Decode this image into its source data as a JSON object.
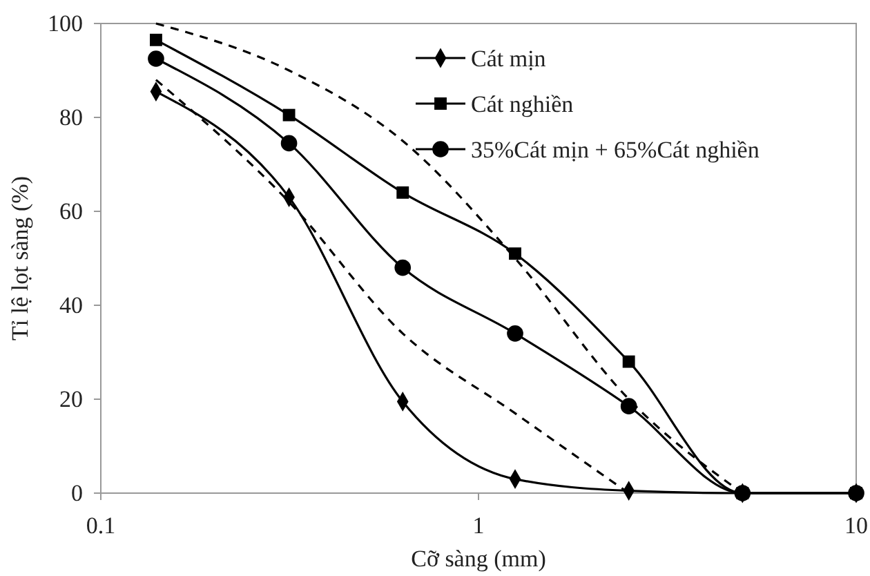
{
  "chart_data": {
    "type": "line",
    "xlabel": "Cỡ sàng (mm)",
    "ylabel": "Tỉ lệ lọt sàng (%)",
    "log": "x",
    "xlim": [
      0.1,
      10
    ],
    "xticks": [
      0.1,
      1,
      10
    ],
    "ylim": [
      0,
      100
    ],
    "yticks": [
      0,
      20,
      40,
      60,
      80,
      100
    ],
    "grid": false,
    "legend": "top right",
    "series": [
      {
        "name": "Cát mịn",
        "color": "#000000",
        "marker": "diamond",
        "line_style": "solid",
        "x": [
          0.14,
          0.315,
          0.63,
          1.25,
          2.5,
          5,
          10
        ],
        "values": [
          85.5,
          63,
          19.5,
          3,
          0.5,
          0,
          0
        ]
      },
      {
        "name": "Cát nghiền",
        "color": "#000000",
        "marker": "square",
        "line_style": "solid",
        "x": [
          0.14,
          0.315,
          0.63,
          1.25,
          2.5,
          5,
          10
        ],
        "values": [
          96.5,
          80.5,
          64,
          51,
          28,
          0,
          0
        ]
      },
      {
        "name": "35%Cát mịn + 65%Cát nghiền",
        "color": "#000000",
        "marker": "circle",
        "line_style": "solid",
        "x": [
          0.14,
          0.315,
          0.63,
          1.25,
          2.5,
          5,
          10
        ],
        "values": [
          92.5,
          74.5,
          48,
          34,
          18.5,
          0,
          0
        ]
      },
      {
        "color": "#000000",
        "marker": "none",
        "line_style": "dashed",
        "x": [
          0.14,
          0.315,
          0.63,
          1.25,
          2.5,
          5
        ],
        "values": [
          100,
          90,
          75,
          50,
          20,
          0
        ]
      },
      {
        "color": "#000000",
        "marker": "none",
        "line_style": "dashed",
        "x": [
          0.14,
          0.315,
          0.63,
          1.25,
          2.5
        ],
        "values": [
          88,
          62,
          34,
          17,
          0
        ]
      }
    ]
  }
}
